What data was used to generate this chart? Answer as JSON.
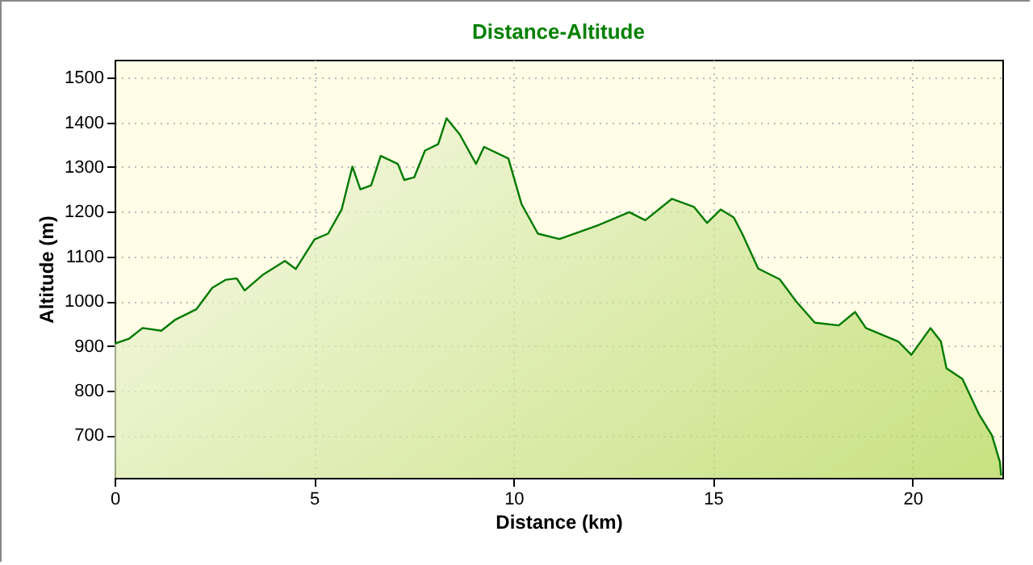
{
  "chart_data": {
    "type": "area",
    "title": "Distance-Altitude",
    "xlabel": "Distance (km)",
    "ylabel": "Altitude (m)",
    "x": [
      0,
      0.36,
      0.7,
      1.17,
      1.51,
      2.05,
      2.45,
      2.79,
      3.06,
      3.26,
      3.73,
      4.27,
      4.54,
      5.01,
      5.35,
      5.69,
      5.96,
      6.16,
      6.43,
      6.67,
      7.1,
      7.26,
      7.51,
      7.78,
      8.11,
      8.32,
      8.65,
      9.06,
      9.26,
      9.87,
      10.2,
      10.61,
      11.15,
      12.09,
      12.9,
      13.3,
      13.97,
      14.52,
      14.85,
      15.19,
      15.52,
      15.73,
      16.13,
      16.67,
      17.08,
      17.55,
      18.15,
      18.56,
      18.83,
      19.64,
      19.97,
      20.45,
      20.71,
      20.85,
      21.25,
      21.66,
      21.99,
      22.19,
      22.22
    ],
    "values": [
      905,
      916,
      940,
      934,
      958,
      982,
      1030,
      1048,
      1051,
      1024,
      1060,
      1090,
      1072,
      1138,
      1151,
      1205,
      1301,
      1250,
      1259,
      1325,
      1307,
      1271,
      1277,
      1337,
      1351,
      1409,
      1373,
      1307,
      1345,
      1319,
      1217,
      1151,
      1139,
      1169,
      1199,
      1181,
      1229,
      1211,
      1175,
      1205,
      1187,
      1151,
      1073,
      1049,
      1000,
      952,
      946,
      976,
      940,
      910,
      880,
      940,
      910,
      850,
      826,
      748,
      700,
      640,
      610
    ],
    "color": "#007a00",
    "xlim": [
      0,
      22.25
    ],
    "ylim": [
      605,
      1540
    ],
    "xticks": [
      0,
      5,
      10,
      15,
      20
    ],
    "yticks": [
      700,
      800,
      900,
      1000,
      1100,
      1200,
      1300,
      1400,
      1500
    ],
    "grid": true
  }
}
